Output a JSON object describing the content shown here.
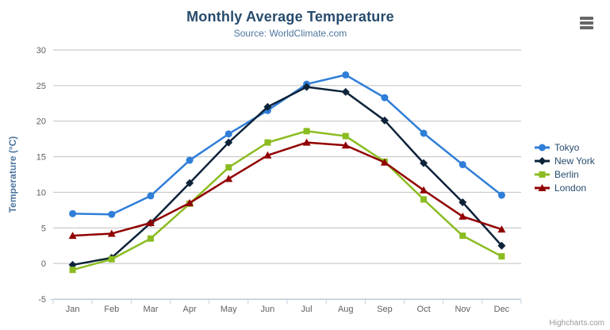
{
  "credit": "Highcharts.com",
  "context_menu": {
    "icon": "hamburger-icon"
  },
  "chart_data": {
    "type": "line",
    "title": "Monthly Average Temperature",
    "subtitle": "Source: WorldClimate.com",
    "ylabel": "Temperature (°C)",
    "xlabel": "",
    "ylim": [
      -5,
      30
    ],
    "ytick_step": 5,
    "grid": true,
    "legend_position": "right",
    "categories": [
      "Jan",
      "Feb",
      "Mar",
      "Apr",
      "May",
      "Jun",
      "Jul",
      "Aug",
      "Sep",
      "Oct",
      "Nov",
      "Dec"
    ],
    "series": [
      {
        "name": "Tokyo",
        "color": "#2f7ed8",
        "marker": "circle",
        "values": [
          7.0,
          6.9,
          9.5,
          14.5,
          18.2,
          21.5,
          25.2,
          26.5,
          23.3,
          18.3,
          13.9,
          9.6
        ]
      },
      {
        "name": "New York",
        "color": "#0d233a",
        "marker": "diamond",
        "values": [
          -0.2,
          0.8,
          5.7,
          11.3,
          17.0,
          22.0,
          24.8,
          24.1,
          20.1,
          14.1,
          8.6,
          2.5
        ]
      },
      {
        "name": "Berlin",
        "color": "#8bbc21",
        "marker": "square",
        "values": [
          -0.9,
          0.6,
          3.5,
          8.4,
          13.5,
          17.0,
          18.6,
          17.9,
          14.3,
          9.0,
          3.9,
          1.0
        ]
      },
      {
        "name": "London",
        "color": "#910000",
        "marker": "triangle",
        "values": [
          3.9,
          4.2,
          5.7,
          8.5,
          11.9,
          15.2,
          17.0,
          16.6,
          14.2,
          10.3,
          6.6,
          4.8
        ]
      }
    ],
    "colors": {
      "grid": "#C0C0C0",
      "axis_line": "#C0D0E0",
      "tick": "#C0D0E0",
      "axis_label": "#606060",
      "title": "#274b6d",
      "subtitle": "#4d759e",
      "legend_text": "#274b6d"
    }
  }
}
